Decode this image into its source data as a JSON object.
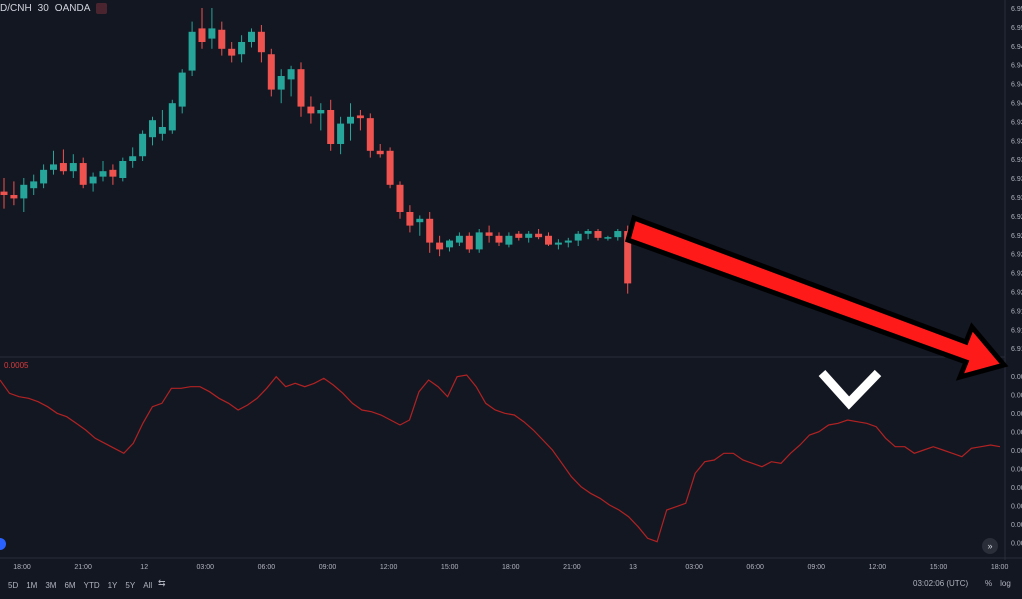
{
  "header": {
    "symbol": "D/CNH",
    "interval": "30",
    "exchange": "OANDA"
  },
  "indicator": {
    "value_label": "0.0005"
  },
  "timeframes": [
    "5D",
    "1M",
    "3M",
    "6M",
    "YTD",
    "1Y",
    "5Y",
    "All"
  ],
  "clock": "03:02:06 (UTC)",
  "scale_buttons": {
    "percent": "%",
    "log": "log"
  },
  "colors": {
    "background": "#131722",
    "up": "#26a69a",
    "down": "#ef5350",
    "indicator_line": "#b22222",
    "arrow": "#ff1a1a"
  },
  "chart_data": [
    {
      "type": "candlestick",
      "title": "D/CNH · 30 · OANDA",
      "x_ticks": [
        "18:00",
        "21:00",
        "12",
        "03:00",
        "06:00",
        "09:00",
        "12:00",
        "15:00",
        "18:00",
        "21:00",
        "13",
        "03:00",
        "06:00",
        "09:00",
        "12:00",
        "15:00",
        "18:00"
      ],
      "y_tick_labels": [
        "6.95",
        "6.95",
        "6.94",
        "6.94",
        "6.94",
        "6.94",
        "6.93",
        "6.93",
        "6.93",
        "6.93",
        "6.93",
        "6.92",
        "6.92",
        "6.92",
        "6.92",
        "6.92",
        "6.91",
        "6.91",
        "6.91"
      ],
      "ylim": [
        6.912,
        6.962
      ],
      "candles": [
        {
          "o": 6.935,
          "h": 6.937,
          "l": 6.9325,
          "c": 6.9345
        },
        {
          "o": 6.9345,
          "h": 6.9365,
          "l": 6.933,
          "c": 6.934
        },
        {
          "o": 6.934,
          "h": 6.937,
          "l": 6.932,
          "c": 6.936
        },
        {
          "o": 6.9355,
          "h": 6.9375,
          "l": 6.9345,
          "c": 6.9365
        },
        {
          "o": 6.9362,
          "h": 6.939,
          "l": 6.9355,
          "c": 6.9382
        },
        {
          "o": 6.9382,
          "h": 6.941,
          "l": 6.9375,
          "c": 6.939
        },
        {
          "o": 6.9392,
          "h": 6.9412,
          "l": 6.9375,
          "c": 6.938
        },
        {
          "o": 6.938,
          "h": 6.9405,
          "l": 6.937,
          "c": 6.9392
        },
        {
          "o": 6.9392,
          "h": 6.94,
          "l": 6.9355,
          "c": 6.936
        },
        {
          "o": 6.9362,
          "h": 6.9378,
          "l": 6.935,
          "c": 6.9372
        },
        {
          "o": 6.9372,
          "h": 6.9395,
          "l": 6.9365,
          "c": 6.938
        },
        {
          "o": 6.9382,
          "h": 6.939,
          "l": 6.936,
          "c": 6.9372
        },
        {
          "o": 6.937,
          "h": 6.94,
          "l": 6.9365,
          "c": 6.9395
        },
        {
          "o": 6.9395,
          "h": 6.9415,
          "l": 6.9385,
          "c": 6.9402
        },
        {
          "o": 6.9402,
          "h": 6.944,
          "l": 6.9395,
          "c": 6.9435
        },
        {
          "o": 6.943,
          "h": 6.946,
          "l": 6.9418,
          "c": 6.9455
        },
        {
          "o": 6.9435,
          "h": 6.947,
          "l": 6.9425,
          "c": 6.9445
        },
        {
          "o": 6.944,
          "h": 6.9485,
          "l": 6.9435,
          "c": 6.948
        },
        {
          "o": 6.9475,
          "h": 6.953,
          "l": 6.9465,
          "c": 6.9525
        },
        {
          "o": 6.9528,
          "h": 6.96,
          "l": 6.952,
          "c": 6.9585
        },
        {
          "o": 6.959,
          "h": 6.962,
          "l": 6.956,
          "c": 6.957
        },
        {
          "o": 6.9575,
          "h": 6.962,
          "l": 6.956,
          "c": 6.959
        },
        {
          "o": 6.9588,
          "h": 6.96,
          "l": 6.955,
          "c": 6.956
        },
        {
          "o": 6.956,
          "h": 6.957,
          "l": 6.954,
          "c": 6.955
        },
        {
          "o": 6.9552,
          "h": 6.958,
          "l": 6.954,
          "c": 6.957
        },
        {
          "o": 6.957,
          "h": 6.959,
          "l": 6.9562,
          "c": 6.9585
        },
        {
          "o": 6.9585,
          "h": 6.9595,
          "l": 6.954,
          "c": 6.9555
        },
        {
          "o": 6.9552,
          "h": 6.956,
          "l": 6.949,
          "c": 6.95
        },
        {
          "o": 6.95,
          "h": 6.953,
          "l": 6.948,
          "c": 6.952
        },
        {
          "o": 6.9515,
          "h": 6.9535,
          "l": 6.949,
          "c": 6.953
        },
        {
          "o": 6.953,
          "h": 6.954,
          "l": 6.946,
          "c": 6.9475
        },
        {
          "o": 6.9475,
          "h": 6.949,
          "l": 6.945,
          "c": 6.9465
        },
        {
          "o": 6.9465,
          "h": 6.948,
          "l": 6.944,
          "c": 6.947
        },
        {
          "o": 6.947,
          "h": 6.9485,
          "l": 6.941,
          "c": 6.942
        },
        {
          "o": 6.942,
          "h": 6.946,
          "l": 6.9405,
          "c": 6.945
        },
        {
          "o": 6.945,
          "h": 6.948,
          "l": 6.9425,
          "c": 6.946
        },
        {
          "o": 6.9462,
          "h": 6.947,
          "l": 6.944,
          "c": 6.9458
        },
        {
          "o": 6.9458,
          "h": 6.9465,
          "l": 6.94,
          "c": 6.941
        },
        {
          "o": 6.941,
          "h": 6.942,
          "l": 6.94,
          "c": 6.9405
        },
        {
          "o": 6.941,
          "h": 6.9415,
          "l": 6.9355,
          "c": 6.936
        },
        {
          "o": 6.936,
          "h": 6.9365,
          "l": 6.931,
          "c": 6.932
        },
        {
          "o": 6.932,
          "h": 6.933,
          "l": 6.929,
          "c": 6.93
        },
        {
          "o": 6.9305,
          "h": 6.9315,
          "l": 6.9285,
          "c": 6.931
        },
        {
          "o": 6.931,
          "h": 6.932,
          "l": 6.926,
          "c": 6.9275
        },
        {
          "o": 6.9275,
          "h": 6.9285,
          "l": 6.9255,
          "c": 6.9265
        },
        {
          "o": 6.9268,
          "h": 6.928,
          "l": 6.9262,
          "c": 6.9278
        },
        {
          "o": 6.9275,
          "h": 6.929,
          "l": 6.927,
          "c": 6.9285
        },
        {
          "o": 6.9285,
          "h": 6.929,
          "l": 6.926,
          "c": 6.9265
        },
        {
          "o": 6.9265,
          "h": 6.9295,
          "l": 6.926,
          "c": 6.929
        },
        {
          "o": 6.929,
          "h": 6.93,
          "l": 6.9275,
          "c": 6.9285
        },
        {
          "o": 6.9285,
          "h": 6.929,
          "l": 6.927,
          "c": 6.9275
        },
        {
          "o": 6.9272,
          "h": 6.929,
          "l": 6.9268,
          "c": 6.9285
        },
        {
          "o": 6.9288,
          "h": 6.9292,
          "l": 6.9278,
          "c": 6.9282
        },
        {
          "o": 6.9282,
          "h": 6.9292,
          "l": 6.9275,
          "c": 6.9288
        },
        {
          "o": 6.9288,
          "h": 6.9295,
          "l": 6.928,
          "c": 6.9283
        },
        {
          "o": 6.9285,
          "h": 6.929,
          "l": 6.927,
          "c": 6.9272
        },
        {
          "o": 6.9272,
          "h": 6.928,
          "l": 6.9265,
          "c": 6.9275
        },
        {
          "o": 6.9275,
          "h": 6.9282,
          "l": 6.9268,
          "c": 6.9278
        },
        {
          "o": 6.9278,
          "h": 6.9292,
          "l": 6.927,
          "c": 6.9288
        },
        {
          "o": 6.9288,
          "h": 6.9295,
          "l": 6.928,
          "c": 6.9292
        },
        {
          "o": 6.9292,
          "h": 6.9295,
          "l": 6.9278,
          "c": 6.9282
        },
        {
          "o": 6.9282,
          "h": 6.9285,
          "l": 6.9278,
          "c": 6.9283
        },
        {
          "o": 6.9283,
          "h": 6.9295,
          "l": 6.9278,
          "c": 6.9292
        },
        {
          "o": 6.9292,
          "h": 6.93,
          "l": 6.92,
          "c": 6.9215
        }
      ]
    },
    {
      "type": "line",
      "series": [
        {
          "name": "",
          "values": [
            0.66,
            0.58,
            0.56,
            0.55,
            0.53,
            0.5,
            0.46,
            0.44,
            0.4,
            0.36,
            0.31,
            0.28,
            0.25,
            0.22,
            0.28,
            0.4,
            0.5,
            0.52,
            0.61,
            0.61,
            0.62,
            0.62,
            0.59,
            0.55,
            0.52,
            0.48,
            0.51,
            0.55,
            0.61,
            0.68,
            0.62,
            0.64,
            0.62,
            0.64,
            0.67,
            0.63,
            0.58,
            0.52,
            0.48,
            0.47,
            0.45,
            0.42,
            0.39,
            0.42,
            0.59,
            0.66,
            0.62,
            0.56,
            0.68,
            0.69,
            0.62,
            0.52,
            0.48,
            0.46,
            0.45,
            0.41,
            0.36,
            0.3,
            0.24,
            0.16,
            0.08,
            0.02,
            -0.02,
            -0.05,
            -0.09,
            -0.12,
            -0.16,
            -0.22,
            -0.29,
            -0.31,
            -0.12,
            -0.1,
            -0.08,
            0.1,
            0.17,
            0.18,
            0.22,
            0.22,
            0.18,
            0.16,
            0.14,
            0.17,
            0.16,
            0.22,
            0.27,
            0.33,
            0.35,
            0.39,
            0.4,
            0.42,
            0.41,
            0.4,
            0.38,
            0.31,
            0.26,
            0.26,
            0.22,
            0.24,
            0.26,
            0.24,
            0.22,
            0.2,
            0.25,
            0.26,
            0.27,
            0.26
          ]
        }
      ],
      "ylim": [
        -0.33,
        0.72
      ],
      "y_tick_labels": [
        "0.00",
        "0.00",
        "0.00",
        "0.00",
        "0.00",
        "0.00",
        "0.00",
        "0.00",
        "0.00",
        "0.00"
      ]
    }
  ]
}
